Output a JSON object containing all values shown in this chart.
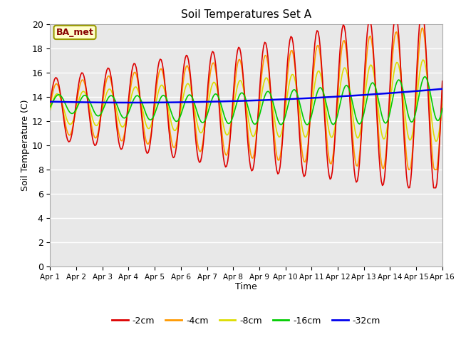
{
  "title": "Soil Temperatures Set A",
  "xlabel": "Time",
  "ylabel": "Soil Temperature (C)",
  "annotation": "BA_met",
  "ylim": [
    0,
    20
  ],
  "yticks": [
    0,
    2,
    4,
    6,
    8,
    10,
    12,
    14,
    16,
    18,
    20
  ],
  "xlim": [
    0,
    15
  ],
  "xtick_labels": [
    "Apr 1",
    "Apr 2",
    "Apr 3",
    "Apr 4",
    "Apr 5",
    "Apr 6",
    "Apr 7",
    "Apr 8",
    "Apr 9",
    "Apr 10",
    "Apr 11",
    "Apr 12",
    "Apr 13",
    "Apr 14",
    "Apr 15",
    "Apr 16"
  ],
  "legend": [
    {
      "label": "-2cm",
      "color": "#dd0000"
    },
    {
      "label": "-4cm",
      "color": "#ff9900"
    },
    {
      "label": "-8cm",
      "color": "#dddd00"
    },
    {
      "label": "-16cm",
      "color": "#00cc00"
    },
    {
      "label": "-32cm",
      "color": "#0000ee"
    }
  ],
  "bg_color": "#e8e8e8",
  "lw_shallow": 1.2,
  "lw_deep": 1.8,
  "n_points": 361
}
